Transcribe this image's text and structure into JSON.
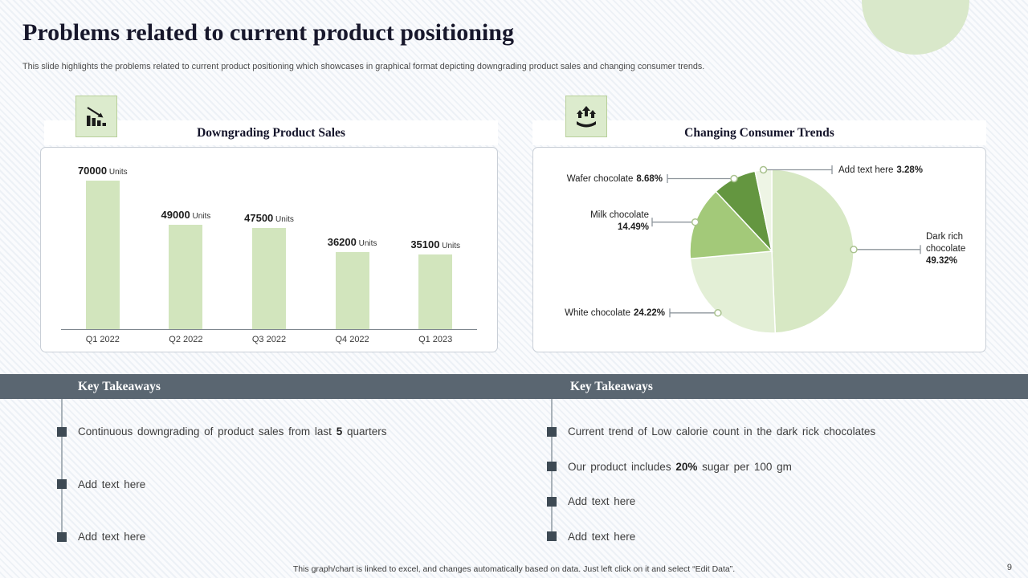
{
  "slide": {
    "title": "Problems related to current product positioning",
    "subtitle": "This slide highlights the problems related to current product positioning which showcases in graphical format depicting downgrading product sales and changing consumer trends.",
    "footer_note": "This graph/chart is linked to excel, and changes automatically based on data. Just left click on it and select “Edit Data”.",
    "page_number": "9"
  },
  "bar_panel": {
    "title": "Downgrading Product Sales",
    "icon": "declining-bar-chart-icon"
  },
  "pie_panel": {
    "title": "Changing Consumer Trends",
    "icon": "consumer-trends-icon"
  },
  "chart_data": [
    {
      "type": "bar",
      "title": "Downgrading Product Sales",
      "categories": [
        "Q1 2022",
        "Q2 2022",
        "Q3 2022",
        "Q4 2022",
        "Q1 2023"
      ],
      "values": [
        70000,
        49000,
        47500,
        36200,
        35100
      ],
      "value_suffix": "Units",
      "ylim": [
        0,
        70000
      ],
      "bar_color": "#d2e5bd",
      "grid": false,
      "legend": "none"
    },
    {
      "type": "pie",
      "title": "Changing Consumer Trends",
      "slices": [
        {
          "label": "Dark rich chocolate",
          "value": 49.32,
          "pct_label": "49.32%",
          "color": "#d7e8c4"
        },
        {
          "label": "White chocolate",
          "value": 24.22,
          "pct_label": "24.22%",
          "color": "#e3efd6"
        },
        {
          "label": "Milk chocolate",
          "value": 14.49,
          "pct_label": "14.49%",
          "color": "#a3c979"
        },
        {
          "label": "Wafer chocolate",
          "value": 8.68,
          "pct_label": "8.68%",
          "color": "#649640"
        },
        {
          "label": "Add text here",
          "value": 3.28,
          "pct_label": "3.28%",
          "color": "#eef5e5"
        }
      ],
      "legend": "callout-labels"
    }
  ],
  "takeaways_left": {
    "heading": "Key Takeaways",
    "items": [
      {
        "pre": "Continuous downgrading of product sales from last ",
        "bold": "5",
        "post": " quarters"
      },
      {
        "pre": "Add text here",
        "bold": "",
        "post": ""
      },
      {
        "pre": "Add text here",
        "bold": "",
        "post": ""
      }
    ]
  },
  "takeaways_right": {
    "heading": "Key Takeaways",
    "items": [
      {
        "pre": "Current trend of Low calorie count in the dark rick chocolates",
        "bold": "",
        "post": ""
      },
      {
        "pre": "Our product includes ",
        "bold": "20%",
        "post": " sugar per 100 gm"
      },
      {
        "pre": "Add text here",
        "bold": "",
        "post": ""
      },
      {
        "pre": "Add text here",
        "bold": "",
        "post": ""
      }
    ]
  },
  "colors": {
    "accent_green_light": "#d9e8ca",
    "accent_green_dark": "#649640",
    "header_bar_gray": "#5a6671",
    "bullet_marker": "#3e4a54"
  }
}
